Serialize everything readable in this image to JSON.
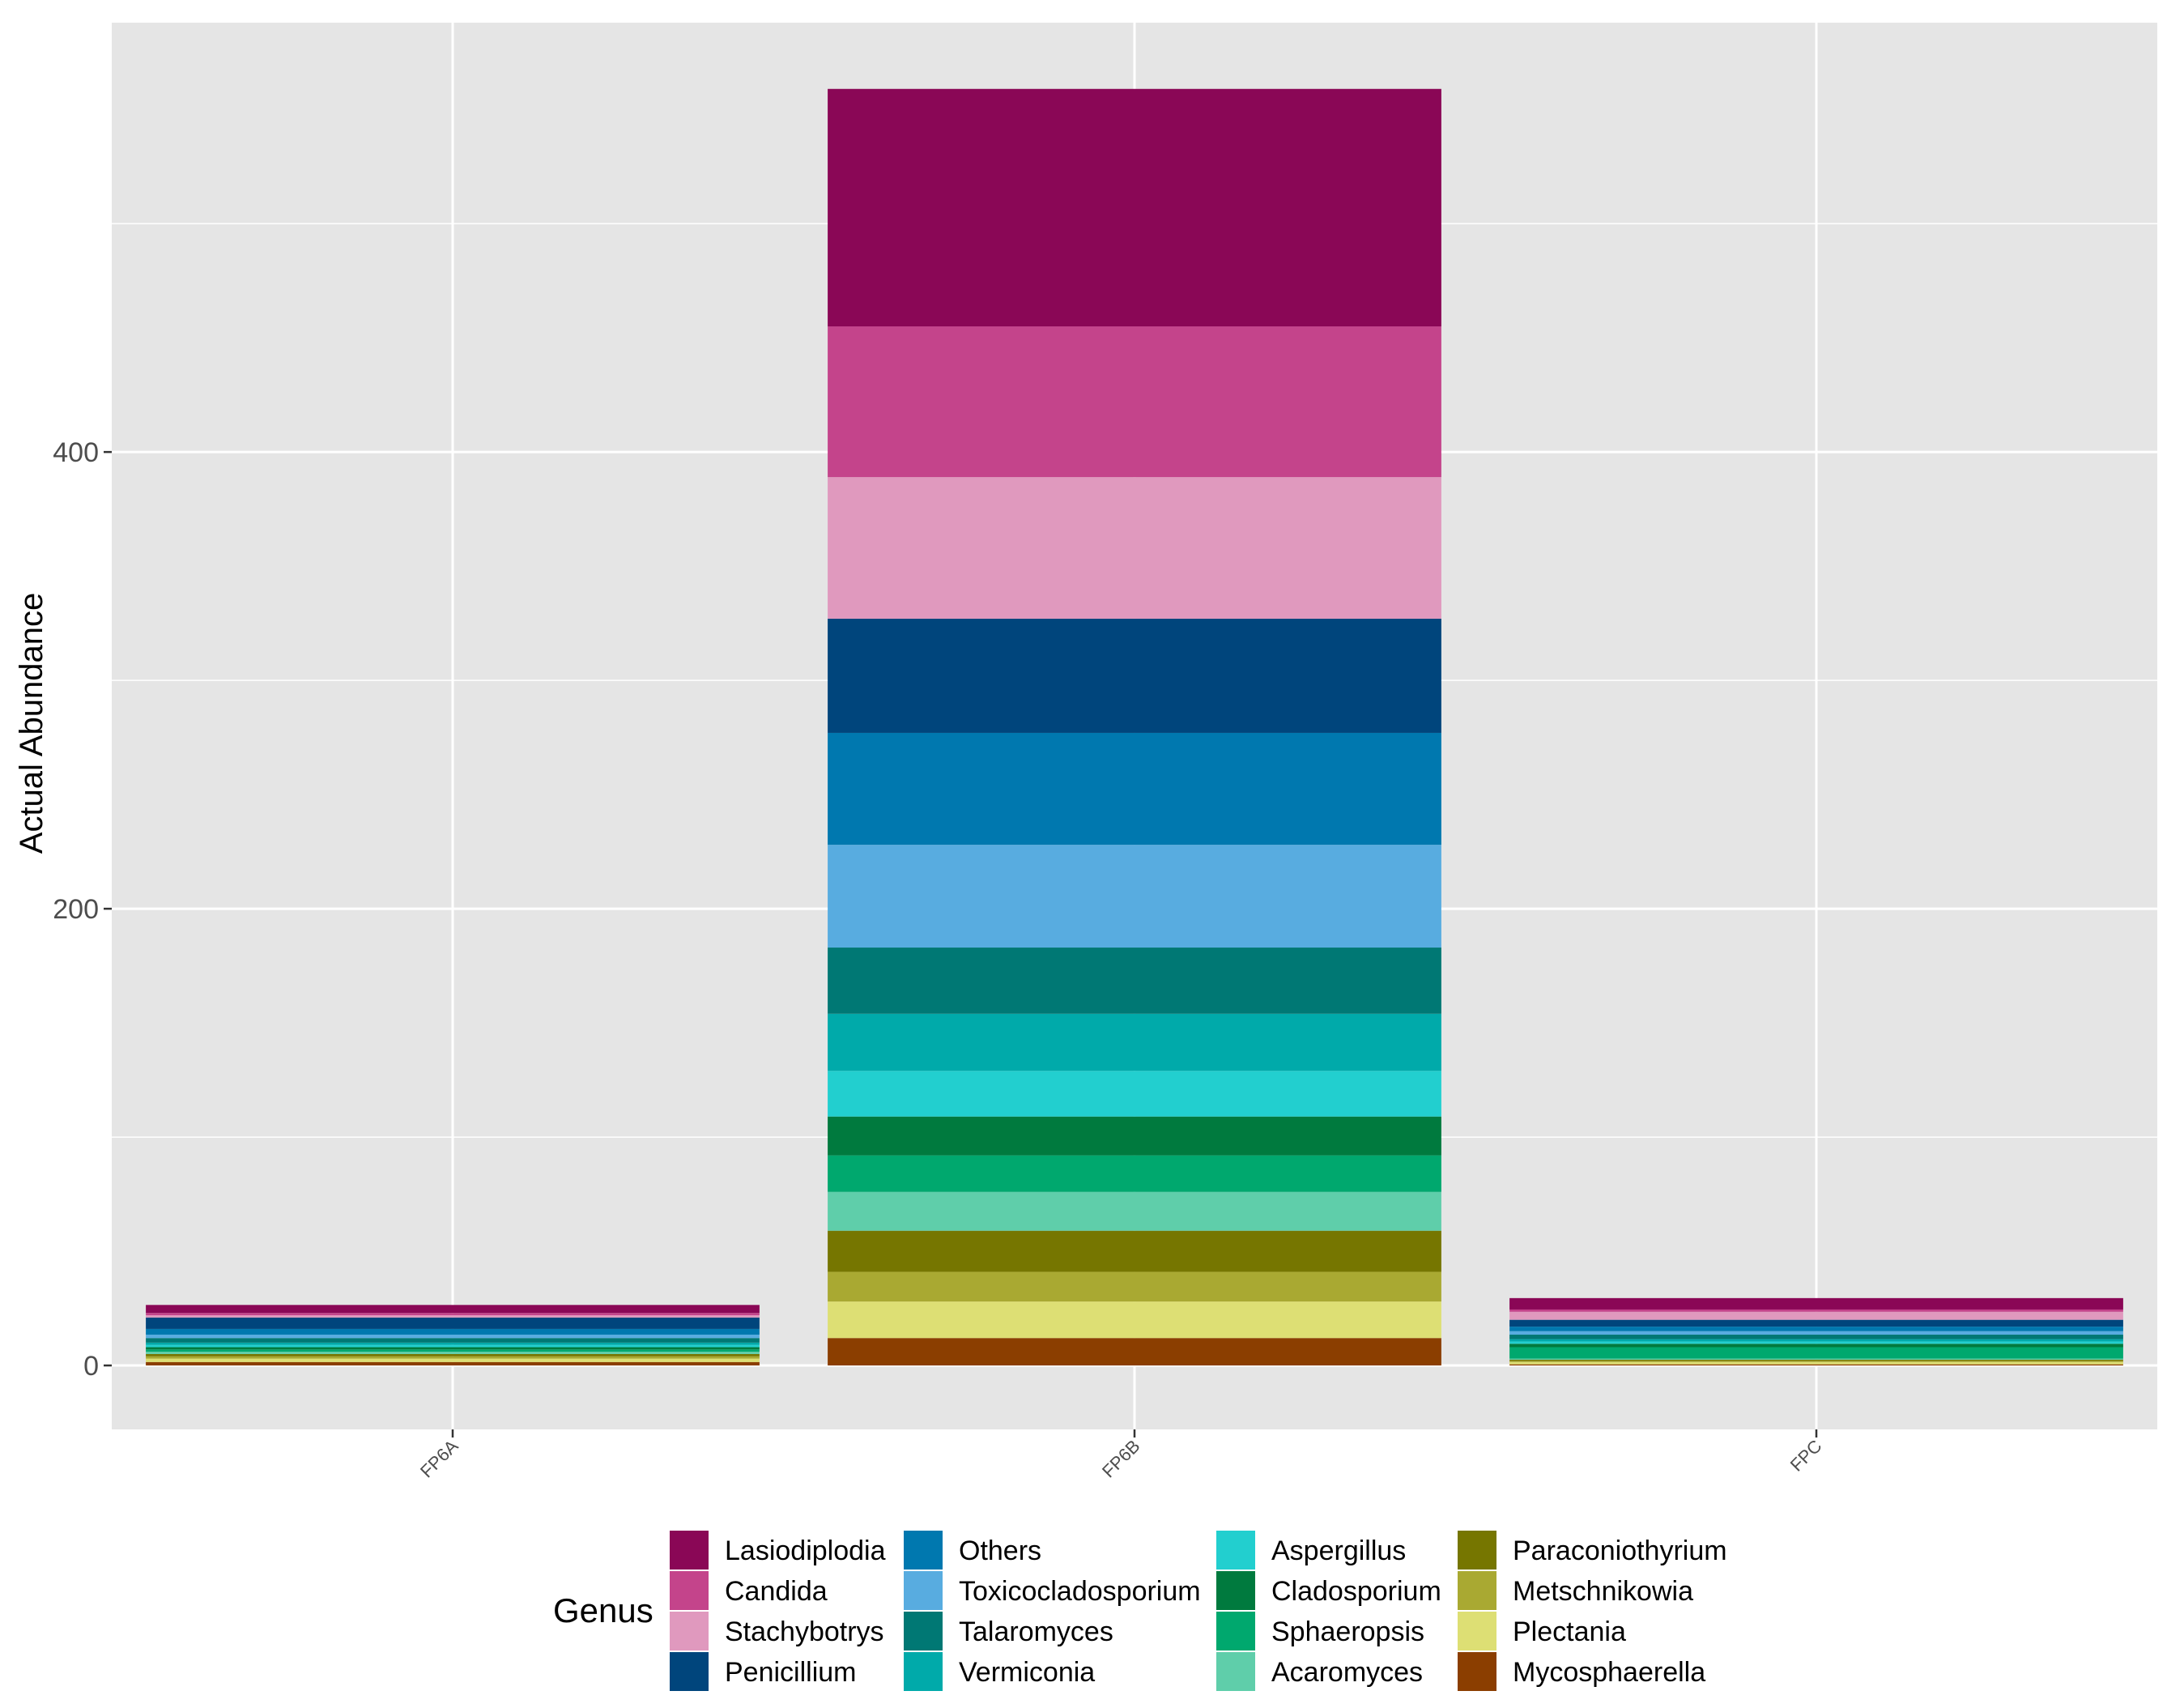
{
  "chart_data": {
    "type": "bar",
    "stacked": true,
    "title": "",
    "xlabel": "",
    "ylabel": "Actual Abundance",
    "categories": [
      "FP6A",
      "FP6B",
      "FPC"
    ],
    "ylim": [
      -28,
      588
    ],
    "yticks": [
      0,
      200,
      400
    ],
    "ytick_labels": [
      "0",
      "200",
      "400"
    ],
    "grid": true,
    "legend": {
      "title": "Genus",
      "position": "bottom"
    },
    "series": [
      {
        "name": "Mycosphaerella",
        "color": "#8B3E00",
        "values": [
          1.5,
          12,
          0.5
        ]
      },
      {
        "name": "Plectania",
        "color": "#DDDF74",
        "values": [
          1.5,
          16,
          1
        ]
      },
      {
        "name": "Metschnikowia",
        "color": "#A9A932",
        "values": [
          1,
          13,
          0.5
        ]
      },
      {
        "name": "Paraconiothyrium",
        "color": "#767600",
        "values": [
          1,
          18,
          0.5
        ]
      },
      {
        "name": "Acaromyces",
        "color": "#5FCEAA",
        "values": [
          1,
          17,
          0.5
        ]
      },
      {
        "name": "Sphaeropsis",
        "color": "#00A86E",
        "values": [
          1,
          16,
          5
        ]
      },
      {
        "name": "Cladosporium",
        "color": "#007A3E",
        "values": [
          1,
          17,
          1.5
        ]
      },
      {
        "name": "Aspergillus",
        "color": "#22CFCF",
        "values": [
          1,
          20,
          1
        ]
      },
      {
        "name": "Vermiconia",
        "color": "#00AAAA",
        "values": [
          1,
          25,
          1
        ]
      },
      {
        "name": "Talaromyces",
        "color": "#007874",
        "values": [
          2,
          29,
          2
        ]
      },
      {
        "name": "Toxicocladosporium",
        "color": "#58ACE0",
        "values": [
          1.5,
          45,
          1.5
        ]
      },
      {
        "name": "Others",
        "color": "#0078AF",
        "values": [
          2.5,
          49,
          2
        ]
      },
      {
        "name": "Penicillium",
        "color": "#00457C",
        "values": [
          5,
          50,
          3
        ]
      },
      {
        "name": "Stachybotrys",
        "color": "#E099BE",
        "values": [
          1,
          62,
          3.5
        ]
      },
      {
        "name": "Candida",
        "color": "#C4448B",
        "values": [
          1,
          66,
          1
        ]
      },
      {
        "name": "Lasiodiplodia",
        "color": "#8A0756",
        "values": [
          3.5,
          104,
          5
        ]
      }
    ],
    "legend_order": [
      "Lasiodiplodia",
      "Candida",
      "Stachybotrys",
      "Penicillium",
      "Others",
      "Toxicocladosporium",
      "Talaromyces",
      "Vermiconia",
      "Aspergillus",
      "Cladosporium",
      "Sphaeropsis",
      "Acaromyces",
      "Paraconiothyrium",
      "Metschnikowia",
      "Plectania",
      "Mycosphaerella"
    ]
  },
  "colors": {
    "panel": "#E5E5E5",
    "grid": "#FFFFFF",
    "background": "#FFFFFF"
  }
}
